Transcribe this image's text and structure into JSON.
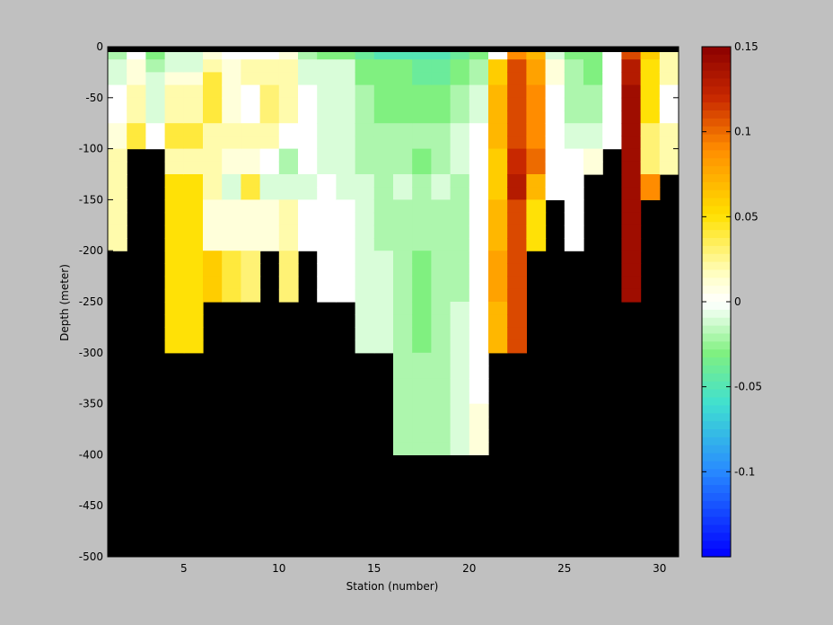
{
  "chart_data": {
    "type": "heatmap",
    "title": "",
    "xlabel": "Station (number)",
    "ylabel": "Depth (meter)",
    "xlim": [
      1,
      31
    ],
    "ylim": [
      -500,
      0
    ],
    "xticks": [
      5,
      10,
      15,
      20,
      25,
      30
    ],
    "yticks": [
      0,
      -50,
      -100,
      -150,
      -200,
      -250,
      -300,
      -350,
      -400,
      -450,
      -500
    ],
    "depth_levels": [
      0,
      -12.5,
      -25,
      -37.5,
      -50,
      -62.5,
      -75,
      -87.5,
      -100,
      -112.5,
      -125,
      -137.5,
      -150,
      -162.5,
      -175,
      -187.5,
      -200,
      -212.5,
      -225,
      -237.5,
      -250,
      -262.5,
      -275,
      -287.5,
      -300,
      -312.5,
      -325,
      -337.5,
      -350,
      -362.5,
      -375,
      -387.5,
      -400,
      -412.5,
      -425,
      -437.5,
      -450,
      -462.5,
      -475,
      -487.5,
      -500
    ],
    "land_color": "#000000",
    "colorbar": {
      "range": [
        -0.15,
        0.15
      ],
      "ticks": [
        0.15,
        0.1,
        0.05,
        0,
        -0.05,
        -0.1
      ],
      "tick_labels": [
        "0.15",
        "0.1",
        "0.05",
        "0",
        "-0.05",
        "-0.1"
      ],
      "colormap": "blue-cyan-green-white-yellow-orange-darkred"
    },
    "stations": [
      {
        "x": 1,
        "max_depth": -200,
        "values": [
          -0.02,
          -0.01,
          -0.01,
          0.0,
          0.0,
          0.0,
          0.01,
          0.01,
          0.02,
          0.02,
          0.02,
          0.02,
          0.02,
          0.02,
          0.02,
          0.02
        ]
      },
      {
        "x": 2,
        "max_depth": -100,
        "values": [
          0.0,
          0.01,
          0.01,
          0.02,
          0.02,
          0.02,
          0.04,
          0.04
        ]
      },
      {
        "x": 3,
        "max_depth": -100,
        "values": [
          -0.03,
          -0.02,
          -0.01,
          -0.01,
          -0.01,
          -0.01,
          0.0,
          0.0
        ]
      },
      {
        "x": 4,
        "max_depth": -300,
        "values": [
          -0.01,
          -0.01,
          0.01,
          0.02,
          0.02,
          0.02,
          0.04,
          0.04,
          0.02,
          0.02,
          0.05,
          0.05,
          0.05,
          0.05,
          0.05,
          0.05,
          0.05,
          0.05,
          0.05,
          0.05,
          0.05,
          0.05,
          0.05,
          0.05
        ]
      },
      {
        "x": 5,
        "max_depth": -300,
        "values": [
          -0.01,
          -0.01,
          0.01,
          0.02,
          0.02,
          0.02,
          0.04,
          0.04,
          0.02,
          0.02,
          0.05,
          0.05,
          0.05,
          0.05,
          0.05,
          0.05,
          0.05,
          0.05,
          0.05,
          0.05,
          0.05,
          0.05,
          0.05,
          0.05
        ]
      },
      {
        "x": 6,
        "max_depth": -250,
        "values": [
          0.01,
          0.02,
          0.04,
          0.04,
          0.04,
          0.04,
          0.02,
          0.02,
          0.02,
          0.02,
          0.02,
          0.02,
          0.01,
          0.01,
          0.01,
          0.01,
          0.06,
          0.06,
          0.06,
          0.06
        ]
      },
      {
        "x": 7,
        "max_depth": -250,
        "values": [
          0.0,
          0.01,
          0.01,
          0.01,
          0.01,
          0.01,
          0.02,
          0.02,
          0.01,
          0.01,
          -0.01,
          -0.01,
          0.01,
          0.01,
          0.01,
          0.01,
          0.04,
          0.04,
          0.04,
          0.04
        ]
      },
      {
        "x": 8,
        "max_depth": -250,
        "values": [
          0.0,
          0.02,
          0.02,
          0.0,
          0.0,
          0.0,
          0.02,
          0.02,
          0.01,
          0.01,
          0.04,
          0.04,
          0.01,
          0.01,
          0.01,
          0.01,
          0.03,
          0.03,
          0.03,
          0.03
        ]
      },
      {
        "x": 9,
        "max_depth": -200,
        "values": [
          0.0,
          0.02,
          0.02,
          0.03,
          0.03,
          0.03,
          0.02,
          0.02,
          0.0,
          0.0,
          -0.01,
          -0.01,
          0.01,
          0.01,
          0.01,
          0.01
        ]
      },
      {
        "x": 10,
        "max_depth": -250,
        "values": [
          0.01,
          0.02,
          0.02,
          0.02,
          0.02,
          0.02,
          0.0,
          0.0,
          -0.02,
          -0.02,
          -0.01,
          -0.01,
          0.02,
          0.02,
          0.02,
          0.02,
          0.03,
          0.03,
          0.03,
          0.03
        ]
      },
      {
        "x": 11,
        "max_depth": -200,
        "values": [
          -0.02,
          -0.01,
          -0.01,
          0.0,
          0.0,
          0.0,
          0.0,
          0.0,
          0.0,
          0.0,
          -0.01,
          -0.01,
          0.0,
          0.0,
          0.0,
          0.0
        ]
      },
      {
        "x": 12,
        "max_depth": -250,
        "values": [
          -0.03,
          -0.01,
          -0.01,
          -0.01,
          -0.01,
          -0.01,
          -0.01,
          -0.01,
          -0.01,
          -0.01,
          0.0,
          0.0,
          0.0,
          0.0,
          0.0,
          0.0,
          0.0,
          0.0,
          0.0,
          0.0
        ]
      },
      {
        "x": 13,
        "max_depth": -250,
        "values": [
          -0.03,
          -0.01,
          -0.01,
          -0.01,
          -0.01,
          -0.01,
          -0.01,
          -0.01,
          -0.01,
          -0.01,
          -0.01,
          -0.01,
          0.0,
          0.0,
          0.0,
          0.0,
          0.0,
          0.0,
          0.0,
          0.0
        ]
      },
      {
        "x": 14,
        "max_depth": -300,
        "values": [
          -0.04,
          -0.03,
          -0.03,
          -0.02,
          -0.02,
          -0.02,
          -0.02,
          -0.02,
          -0.02,
          -0.02,
          -0.01,
          -0.01,
          -0.01,
          -0.01,
          -0.01,
          -0.01,
          -0.01,
          -0.01,
          -0.01,
          -0.01,
          -0.01,
          -0.01,
          -0.01,
          -0.01
        ]
      },
      {
        "x": 15,
        "max_depth": -300,
        "values": [
          -0.05,
          -0.03,
          -0.03,
          -0.03,
          -0.03,
          -0.03,
          -0.02,
          -0.02,
          -0.02,
          -0.02,
          -0.02,
          -0.02,
          -0.02,
          -0.02,
          -0.02,
          -0.02,
          -0.01,
          -0.01,
          -0.01,
          -0.01,
          -0.01,
          -0.01,
          -0.01,
          -0.01
        ]
      },
      {
        "x": 16,
        "max_depth": -400,
        "values": [
          -0.05,
          -0.03,
          -0.03,
          -0.03,
          -0.03,
          -0.03,
          -0.02,
          -0.02,
          -0.02,
          -0.02,
          -0.01,
          -0.01,
          -0.02,
          -0.02,
          -0.02,
          -0.02,
          -0.02,
          -0.02,
          -0.02,
          -0.02,
          -0.02,
          -0.02,
          -0.02,
          -0.02,
          -0.02,
          -0.02,
          -0.02,
          -0.02,
          -0.02,
          -0.02,
          -0.02,
          -0.02
        ]
      },
      {
        "x": 17,
        "max_depth": -400,
        "values": [
          -0.05,
          -0.04,
          -0.04,
          -0.03,
          -0.03,
          -0.03,
          -0.02,
          -0.02,
          -0.03,
          -0.03,
          -0.02,
          -0.02,
          -0.02,
          -0.02,
          -0.02,
          -0.02,
          -0.03,
          -0.03,
          -0.03,
          -0.03,
          -0.03,
          -0.03,
          -0.03,
          -0.03,
          -0.02,
          -0.02,
          -0.02,
          -0.02,
          -0.02,
          -0.02,
          -0.02,
          -0.02
        ]
      },
      {
        "x": 18,
        "max_depth": -400,
        "values": [
          -0.05,
          -0.04,
          -0.04,
          -0.03,
          -0.03,
          -0.03,
          -0.02,
          -0.02,
          -0.02,
          -0.02,
          -0.01,
          -0.01,
          -0.02,
          -0.02,
          -0.02,
          -0.02,
          -0.02,
          -0.02,
          -0.02,
          -0.02,
          -0.02,
          -0.02,
          -0.02,
          -0.02,
          -0.02,
          -0.02,
          -0.02,
          -0.02,
          -0.02,
          -0.02,
          -0.02,
          -0.02
        ]
      },
      {
        "x": 19,
        "max_depth": -400,
        "values": [
          -0.04,
          -0.03,
          -0.03,
          -0.02,
          -0.02,
          -0.02,
          -0.01,
          -0.01,
          -0.01,
          -0.01,
          -0.02,
          -0.02,
          -0.02,
          -0.02,
          -0.02,
          -0.02,
          -0.02,
          -0.02,
          -0.02,
          -0.02,
          -0.01,
          -0.01,
          -0.01,
          -0.01,
          -0.01,
          -0.01,
          -0.01,
          -0.01,
          -0.01,
          -0.01,
          -0.01,
          -0.01
        ]
      },
      {
        "x": 20,
        "max_depth": -400,
        "values": [
          -0.03,
          -0.02,
          -0.02,
          -0.01,
          -0.01,
          -0.01,
          0.0,
          0.0,
          0.0,
          0.0,
          0.0,
          0.0,
          0.0,
          0.0,
          0.0,
          0.0,
          0.0,
          0.0,
          0.0,
          0.0,
          0.0,
          0.0,
          0.0,
          0.0,
          0.0,
          0.0,
          0.0,
          0.0,
          0.01,
          0.01,
          0.01,
          0.01
        ]
      },
      {
        "x": 21,
        "max_depth": -300,
        "values": [
          0.0,
          0.06,
          0.06,
          0.07,
          0.07,
          0.07,
          0.07,
          0.07,
          0.06,
          0.06,
          0.06,
          0.06,
          0.07,
          0.07,
          0.07,
          0.07,
          0.08,
          0.08,
          0.08,
          0.08,
          0.07,
          0.07,
          0.07,
          0.07
        ]
      },
      {
        "x": 22,
        "max_depth": -300,
        "values": [
          0.09,
          0.11,
          0.11,
          0.11,
          0.11,
          0.11,
          0.11,
          0.11,
          0.12,
          0.12,
          0.13,
          0.13,
          0.11,
          0.11,
          0.11,
          0.11,
          0.11,
          0.11,
          0.11,
          0.11,
          0.11,
          0.11,
          0.11,
          0.11
        ]
      },
      {
        "x": 23,
        "max_depth": -200,
        "values": [
          0.07,
          0.08,
          0.08,
          0.09,
          0.09,
          0.09,
          0.09,
          0.09,
          0.1,
          0.1,
          0.07,
          0.07,
          0.05,
          0.05,
          0.05,
          0.05
        ]
      },
      {
        "x": 24,
        "max_depth": -150,
        "values": [
          -0.01,
          0.01,
          0.01,
          0.0,
          0.0,
          0.0,
          0.0,
          0.0,
          0.0,
          0.0,
          0.0,
          0.0
        ]
      },
      {
        "x": 25,
        "max_depth": -200,
        "values": [
          -0.03,
          -0.02,
          -0.02,
          -0.02,
          -0.02,
          -0.02,
          -0.01,
          -0.01,
          0.0,
          0.0,
          0.0,
          0.0,
          0.0,
          0.0,
          0.0,
          0.0
        ]
      },
      {
        "x": 26,
        "max_depth": -125,
        "values": [
          -0.03,
          -0.03,
          -0.03,
          -0.02,
          -0.02,
          -0.02,
          -0.01,
          -0.01,
          0.01,
          0.01
        ]
      },
      {
        "x": 27,
        "max_depth": -100,
        "values": [
          0.0,
          0.0,
          0.0,
          0.0,
          0.0,
          0.0,
          0.0,
          0.0
        ]
      },
      {
        "x": 28,
        "max_depth": -250,
        "values": [
          0.11,
          0.13,
          0.13,
          0.14,
          0.14,
          0.14,
          0.14,
          0.14,
          0.14,
          0.14,
          0.14,
          0.14,
          0.14,
          0.14,
          0.14,
          0.14,
          0.14,
          0.14,
          0.14,
          0.14
        ]
      },
      {
        "x": 29,
        "max_depth": -150,
        "values": [
          0.06,
          0.05,
          0.05,
          0.05,
          0.05,
          0.05,
          0.03,
          0.03,
          0.03,
          0.03,
          0.09,
          0.09
        ]
      },
      {
        "x": 30,
        "max_depth": -125,
        "values": [
          0.02,
          0.02,
          0.02,
          0.0,
          0.0,
          0.0,
          0.02,
          0.02,
          0.02,
          0.02
        ]
      }
    ]
  }
}
